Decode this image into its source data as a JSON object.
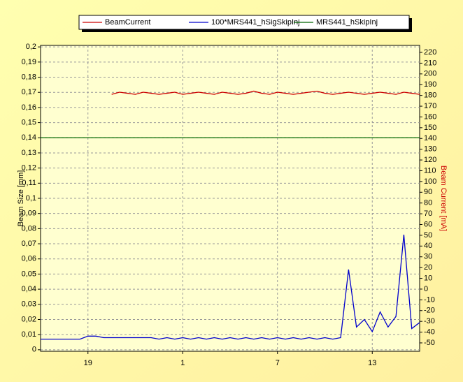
{
  "chart_data": {
    "type": "line",
    "legend": "top",
    "grid": true,
    "y_label": "Beam Size [mm]",
    "y2_label": "Beam Current [mA]",
    "xlim": [
      16,
      40
    ],
    "xticks": [
      {
        "value": 19,
        "label": "19"
      },
      {
        "value": 25,
        "label": "1"
      },
      {
        "value": 31,
        "label": "7"
      },
      {
        "value": 37,
        "label": "13"
      }
    ],
    "ylim": [
      -0.001,
      0.201
    ],
    "yticks": [
      0,
      {
        "value": 0.01,
        "label": "0,01"
      },
      {
        "value": 0.02,
        "label": "0,02"
      },
      {
        "value": 0.03,
        "label": "0,03"
      },
      {
        "value": 0.04,
        "label": "0,04"
      },
      {
        "value": 0.05,
        "label": "0,05"
      },
      {
        "value": 0.06,
        "label": "0,06"
      },
      {
        "value": 0.07,
        "label": "0,07"
      },
      {
        "value": 0.08,
        "label": "0,08"
      },
      {
        "value": 0.09,
        "label": "0,09"
      },
      {
        "value": 0.1,
        "label": "0,1"
      },
      {
        "value": 0.11,
        "label": "0,11"
      },
      {
        "value": 0.12,
        "label": "0,12"
      },
      {
        "value": 0.13,
        "label": "0,13"
      },
      {
        "value": 0.14,
        "label": "0,14"
      },
      {
        "value": 0.15,
        "label": "0,15"
      },
      {
        "value": 0.16,
        "label": "0,16"
      },
      {
        "value": 0.17,
        "label": "0,17"
      },
      {
        "value": 0.18,
        "label": "0,18"
      },
      {
        "value": 0.19,
        "label": "0,19"
      },
      {
        "value": 0.2,
        "label": "0,2"
      }
    ],
    "y2lim": [
      -57.8,
      226.5
    ],
    "y2ticks": [
      -50,
      -40,
      -30,
      -20,
      -10,
      0,
      10,
      20,
      30,
      40,
      50,
      60,
      70,
      80,
      90,
      100,
      110,
      120,
      130,
      140,
      150,
      160,
      170,
      180,
      190,
      200,
      210,
      220
    ],
    "x": [
      16,
      16.5,
      17,
      17.5,
      18,
      18.5,
      19,
      19.5,
      20,
      20.5,
      21,
      21.5,
      22,
      22.5,
      23,
      23.5,
      24,
      24.5,
      25,
      25.5,
      26,
      26.5,
      27,
      27.5,
      28,
      28.5,
      29,
      29.5,
      30,
      30.5,
      31,
      31.5,
      32,
      32.5,
      33,
      33.5,
      34,
      34.5,
      35,
      35.5,
      36,
      36.5,
      37,
      37.5,
      38,
      38.5,
      39,
      39.5,
      40
    ],
    "series": [
      {
        "name": "BeamCurrent",
        "color": "#cc0000",
        "axis": "y2",
        "values": [
          null,
          null,
          null,
          null,
          null,
          null,
          null,
          null,
          null,
          181,
          183,
          182,
          181,
          183,
          182,
          181,
          182,
          183,
          181,
          182,
          183,
          182,
          181,
          183,
          182,
          181,
          182,
          184,
          182,
          181,
          183,
          182,
          181,
          182,
          183,
          184,
          182,
          181,
          182,
          183,
          182,
          181,
          182,
          183,
          182,
          181,
          183,
          182,
          181
        ]
      },
      {
        "name": "100*MRS441_hSigSkipInj",
        "color": "#0000cc",
        "values": [
          0.007,
          0.007,
          0.007,
          0.007,
          0.007,
          0.007,
          0.009,
          0.009,
          0.008,
          0.008,
          0.008,
          0.008,
          0.008,
          0.008,
          0.008,
          0.007,
          0.008,
          0.007,
          0.008,
          0.007,
          0.008,
          0.007,
          0.008,
          0.007,
          0.008,
          0.007,
          0.008,
          0.007,
          0.008,
          0.007,
          0.008,
          0.007,
          0.008,
          0.007,
          0.008,
          0.007,
          0.008,
          0.007,
          0.008,
          0.053,
          0.015,
          0.02,
          0.012,
          0.025,
          0.015,
          0.022,
          0.076,
          0.014,
          0.018
        ]
      },
      {
        "name": "MRS441_hSkipInj",
        "color": "#006600",
        "values": [
          0.14,
          0.14,
          0.14,
          0.14,
          0.14,
          0.14,
          0.14,
          0.14,
          0.14,
          0.14,
          0.14,
          0.14,
          0.14,
          0.14,
          0.14,
          0.14,
          0.14,
          0.14,
          0.14,
          0.14,
          0.14,
          0.14,
          0.14,
          0.14,
          0.14,
          0.14,
          0.14,
          0.14,
          0.14,
          0.14,
          0.14,
          0.14,
          0.14,
          0.14,
          0.14,
          0.14,
          0.14,
          0.14,
          0.14,
          0.14,
          0.14,
          0.14,
          0.14,
          0.14,
          0.14,
          0.14,
          0.14,
          0.14,
          0.14
        ]
      }
    ]
  }
}
